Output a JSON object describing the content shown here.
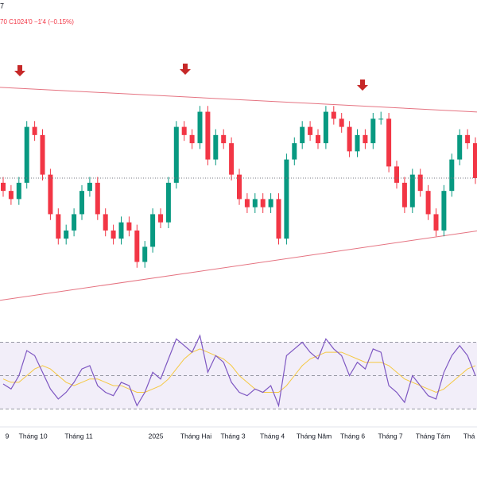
{
  "header": {
    "line1": "7",
    "line2": "70  C1024'0  −1'4 (−0.15%)"
  },
  "chart_data": {
    "type": "candlestick",
    "candles": [
      [
        1020,
        1025,
        1008,
        1013
      ],
      [
        1013,
        1018,
        1001,
        1006
      ],
      [
        1006,
        1025,
        1001,
        1020
      ],
      [
        1020,
        1073,
        1015,
        1068
      ],
      [
        1068,
        1073,
        1056,
        1061
      ],
      [
        1061,
        1066,
        1022,
        1027
      ],
      [
        1027,
        1032,
        988,
        993
      ],
      [
        993,
        998,
        967,
        972
      ],
      [
        972,
        984,
        967,
        979
      ],
      [
        979,
        998,
        974,
        993
      ],
      [
        993,
        1018,
        988,
        1013
      ],
      [
        1013,
        1025,
        1008,
        1020
      ],
      [
        1020,
        1025,
        988,
        993
      ],
      [
        993,
        998,
        974,
        979
      ],
      [
        979,
        984,
        967,
        972
      ],
      [
        972,
        991,
        967,
        986
      ],
      [
        986,
        991,
        974,
        979
      ],
      [
        979,
        984,
        947,
        952
      ],
      [
        952,
        970,
        947,
        965
      ],
      [
        965,
        998,
        960,
        993
      ],
      [
        993,
        998,
        981,
        986
      ],
      [
        986,
        1025,
        981,
        1020
      ],
      [
        1020,
        1073,
        1015,
        1068
      ],
      [
        1068,
        1073,
        1056,
        1061
      ],
      [
        1061,
        1066,
        1049,
        1054
      ],
      [
        1054,
        1086,
        1049,
        1081
      ],
      [
        1081,
        1086,
        1035,
        1040
      ],
      [
        1040,
        1066,
        1035,
        1061
      ],
      [
        1061,
        1066,
        1049,
        1054
      ],
      [
        1054,
        1059,
        1022,
        1027
      ],
      [
        1027,
        1032,
        1001,
        1006
      ],
      [
        1006,
        1011,
        994,
        999
      ],
      [
        999,
        1011,
        994,
        1006
      ],
      [
        1006,
        1011,
        994,
        999
      ],
      [
        999,
        1011,
        994,
        1006
      ],
      [
        1006,
        1011,
        967,
        972
      ],
      [
        972,
        1045,
        967,
        1040
      ],
      [
        1040,
        1059,
        1035,
        1054
      ],
      [
        1054,
        1073,
        1049,
        1068
      ],
      [
        1068,
        1073,
        1056,
        1061
      ],
      [
        1061,
        1066,
        1049,
        1054
      ],
      [
        1054,
        1086,
        1049,
        1081
      ],
      [
        1081,
        1086,
        1070,
        1075
      ],
      [
        1075,
        1080,
        1063,
        1068
      ],
      [
        1068,
        1073,
        1042,
        1047
      ],
      [
        1047,
        1066,
        1042,
        1061
      ],
      [
        1061,
        1066,
        1049,
        1054
      ],
      [
        1054,
        1080,
        1049,
        1075
      ],
      [
        1075,
        1081,
        1070,
        1075
      ],
      [
        1075,
        1080,
        1029,
        1034
      ],
      [
        1034,
        1039,
        1015,
        1020
      ],
      [
        1020,
        1025,
        994,
        999
      ],
      [
        999,
        1032,
        994,
        1027
      ],
      [
        1027,
        1032,
        1008,
        1013
      ],
      [
        1013,
        1018,
        988,
        993
      ],
      [
        993,
        998,
        974,
        979
      ],
      [
        979,
        1018,
        974,
        1013
      ],
      [
        1013,
        1045,
        1008,
        1040
      ],
      [
        1040,
        1066,
        1035,
        1061
      ],
      [
        1061,
        1066,
        1049,
        1054
      ],
      [
        1054,
        1059,
        1019,
        1024
      ]
    ],
    "ylim": [
      897,
      1177
    ],
    "up_color": "#089981",
    "down_color": "#f23645",
    "trendlines": [
      {
        "start": [
          0,
          1102
        ],
        "end": [
          60,
          1081
        ]
      },
      {
        "start": [
          0,
          919
        ],
        "end": [
          60,
          978
        ]
      }
    ],
    "trendline_color": "#e57381",
    "xticks": [
      {
        "value": 0.5,
        "label": "9"
      },
      {
        "value": 3.8,
        "label": "Tháng 10"
      },
      {
        "value": 9.6,
        "label": "Tháng 11"
      },
      {
        "value": 19.4,
        "label": "2025"
      },
      {
        "value": 24.5,
        "label": "Tháng Hai"
      },
      {
        "value": 29.2,
        "label": "Tháng 3"
      },
      {
        "value": 34.2,
        "label": "Tháng 4"
      },
      {
        "value": 39.5,
        "label": "Tháng Năm"
      },
      {
        "value": 44.4,
        "label": "Tháng 6"
      },
      {
        "value": 49.2,
        "label": "Tháng 7"
      },
      {
        "value": 54.6,
        "label": "Tháng Tám"
      },
      {
        "value": 59.2,
        "label": "Thá"
      }
    ],
    "rsi": {
      "values": [
        45,
        42,
        50,
        65,
        62,
        52,
        42,
        36,
        40,
        46,
        54,
        56,
        44,
        40,
        38,
        46,
        44,
        32,
        40,
        52,
        48,
        60,
        72,
        68,
        64,
        74,
        52,
        62,
        58,
        46,
        40,
        38,
        42,
        40,
        44,
        32,
        62,
        66,
        70,
        64,
        60,
        72,
        66,
        62,
        50,
        58,
        54,
        66,
        64,
        44,
        40,
        34,
        50,
        44,
        38,
        36,
        52,
        62,
        68,
        62,
        50
      ],
      "ma": [
        48,
        46,
        46,
        50,
        54,
        56,
        54,
        50,
        46,
        44,
        46,
        48,
        48,
        46,
        44,
        44,
        42,
        40,
        40,
        42,
        44,
        48,
        54,
        60,
        64,
        66,
        64,
        62,
        60,
        56,
        50,
        46,
        42,
        40,
        40,
        40,
        44,
        50,
        56,
        60,
        62,
        64,
        64,
        64,
        62,
        60,
        58,
        58,
        58,
        56,
        52,
        48,
        46,
        44,
        42,
        40,
        42,
        46,
        50,
        54,
        56
      ],
      "ylim": [
        25,
        75
      ],
      "bands": [
        70,
        50,
        30
      ],
      "color": "#7e57c2",
      "ma_color": "#f5c842"
    }
  }
}
